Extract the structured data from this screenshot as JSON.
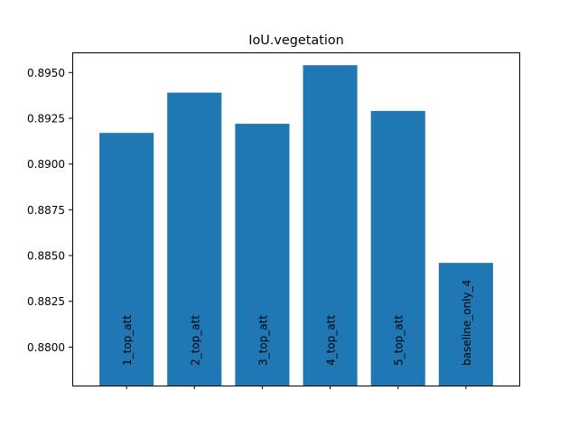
{
  "chart_data": {
    "type": "bar",
    "title": "IoU.vegetation",
    "xlabel": "",
    "ylabel": "",
    "categories": [
      "1_top_att",
      "2_top_att",
      "3_top_att",
      "4_top_att",
      "5_top_att",
      "baseline_only_4"
    ],
    "values": [
      0.8917,
      0.8939,
      0.8922,
      0.8954,
      0.8929,
      0.8846
    ],
    "ylim": [
      0.8779,
      0.8961
    ],
    "yticks": [
      "0.8800",
      "0.8825",
      "0.8850",
      "0.8875",
      "0.8900",
      "0.8925",
      "0.8950"
    ],
    "grid": false,
    "legend": "none",
    "bar_color": "#1f77b4",
    "category_label_placement": "inside-bar-bottom-vertical"
  }
}
